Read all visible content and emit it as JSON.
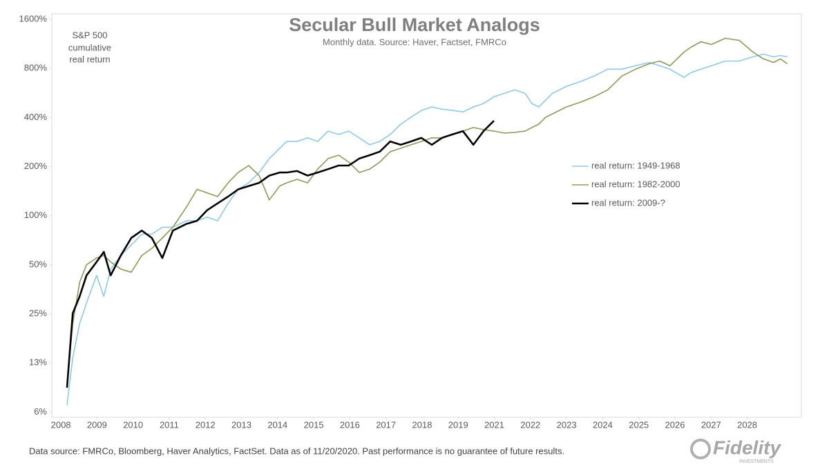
{
  "chart_data": {
    "type": "line",
    "title": "Secular Bull Market Analogs",
    "subtitle": "Monthly data.  Source: Haver, Factset, FMRCo",
    "y_annotation": [
      "S&P 500",
      "cumulative",
      "real return"
    ],
    "footnote": "Data source: FMRCo, Bloomberg, Haver Analytics, FactSet. Data as of 11/20/2020. Past performance is no guarantee of future results.",
    "logo": {
      "name": "Fidelity",
      "tagline": "INVESTMENTS"
    },
    "log_scale": true,
    "grid": false,
    "legend_position": "right",
    "xlim": [
      2007.75,
      2028.5
    ],
    "xticks": [
      2008,
      2009,
      2010,
      2011,
      2012,
      2013,
      2014,
      2015,
      2016,
      2017,
      2018,
      2019,
      {
        "value": 2020,
        "label": "2021"
      },
      {
        "value": 2021,
        "label": "2022"
      },
      {
        "value": 2022,
        "label": "2023"
      },
      {
        "value": 2023,
        "label": "2024"
      },
      {
        "value": 2024,
        "label": "2025"
      },
      {
        "value": 2025,
        "label": "2026"
      },
      {
        "value": 2026,
        "label": "2027"
      },
      {
        "value": 2027,
        "label": "2028"
      }
    ],
    "ylim": [
      5.8,
      1730
    ],
    "yticks": [
      {
        "value": 6.25,
        "label": "6%"
      },
      {
        "value": 12.5,
        "label": "13%"
      },
      {
        "value": 25,
        "label": "25%"
      },
      {
        "value": 50,
        "label": "50%"
      },
      {
        "value": 100,
        "label": "100%"
      },
      {
        "value": 200,
        "label": "200%"
      },
      {
        "value": 400,
        "label": "400%"
      },
      {
        "value": 800,
        "label": "800%"
      },
      {
        "value": 1600,
        "label": "1600%"
      }
    ],
    "x": [
      2008.17,
      2008.33,
      2008.52,
      2008.71,
      2008.99,
      2009.19,
      2009.38,
      2009.66,
      2009.95,
      2010.24,
      2010.52,
      2010.81,
      2011.1,
      2011.48,
      2011.77,
      2012.05,
      2012.34,
      2012.63,
      2012.91,
      2013.2,
      2013.49,
      2013.77,
      2014.06,
      2014.25,
      2014.54,
      2014.83,
      2015.11,
      2015.4,
      2015.69,
      2015.97,
      2016.26,
      2016.55,
      2016.83,
      2017.12,
      2017.41,
      2017.69,
      2017.98,
      2018.27,
      2018.55,
      2018.84,
      2019.13,
      2019.42,
      2019.7,
      2019.99,
      2020.28,
      2020.56,
      2020.85,
      2021.04,
      2021.23,
      2021.42,
      2021.61,
      2021.99,
      2022.38,
      2022.76,
      2023.14,
      2023.53,
      2023.91,
      2024.29,
      2024.58,
      2024.86,
      2025.25,
      2025.44,
      2025.72,
      2026.01,
      2026.39,
      2026.78,
      2027.16,
      2027.45,
      2027.73,
      2027.92,
      2028.11
    ],
    "series": [
      {
        "name": "real return: 1949-1968",
        "color": "#8ec8e8",
        "width": 1.6,
        "values": [
          6.9,
          13.4,
          21.8,
          29.1,
          43,
          32,
          47,
          57,
          66,
          77,
          77,
          85,
          85,
          93,
          93,
          98,
          93,
          119,
          145,
          159,
          184,
          224,
          259,
          285,
          285,
          300,
          285,
          330,
          315,
          330,
          300,
          272,
          285,
          315,
          364,
          401,
          442,
          464,
          450,
          442,
          433,
          464,
          487,
          536,
          563,
          591,
          563,
          487,
          464,
          511,
          563,
          620,
          664,
          718,
          791,
          791,
          830,
          871,
          830,
          791,
          704,
          753,
          791,
          830,
          888,
          888,
          942,
          979,
          942,
          960,
          942
        ]
      },
      {
        "name": "real return: 1982-2000",
        "color": "#8a9a5b",
        "width": 1.6,
        "values": [
          9.1,
          21.8,
          39,
          50,
          55,
          57,
          52,
          47,
          45,
          57,
          63,
          73,
          85,
          113,
          145,
          138,
          131,
          159,
          184,
          203,
          176,
          125,
          152,
          159,
          167,
          159,
          193,
          224,
          235,
          213,
          184,
          193,
          213,
          247,
          259,
          272,
          285,
          300,
          300,
          315,
          330,
          347,
          337,
          330,
          321,
          324,
          330,
          347,
          364,
          401,
          421,
          464,
          496,
          536,
          591,
          718,
          791,
          855,
          888,
          830,
          1008,
          1079,
          1166,
          1121,
          1224,
          1189,
          1008,
          915,
          871,
          915,
          855
        ]
      },
      {
        "name": "real return: 2009-?",
        "color": "#000000",
        "width": 2.6,
        "values": [
          8.8,
          25.2,
          32,
          43,
          52,
          60,
          43,
          57,
          73,
          81,
          73,
          55,
          81,
          89,
          93,
          108,
          119,
          131,
          145,
          152,
          159,
          176,
          184,
          184,
          188,
          176,
          184,
          193,
          203,
          203,
          224,
          235,
          247,
          285,
          272,
          285,
          300,
          272,
          300,
          315,
          330,
          272,
          330,
          382,
          null,
          null,
          null,
          null,
          null,
          null,
          null,
          null,
          null,
          null,
          null,
          null,
          null,
          null,
          null,
          null,
          null,
          null,
          null,
          null,
          null,
          null,
          null,
          null,
          null,
          null,
          null
        ]
      }
    ]
  }
}
